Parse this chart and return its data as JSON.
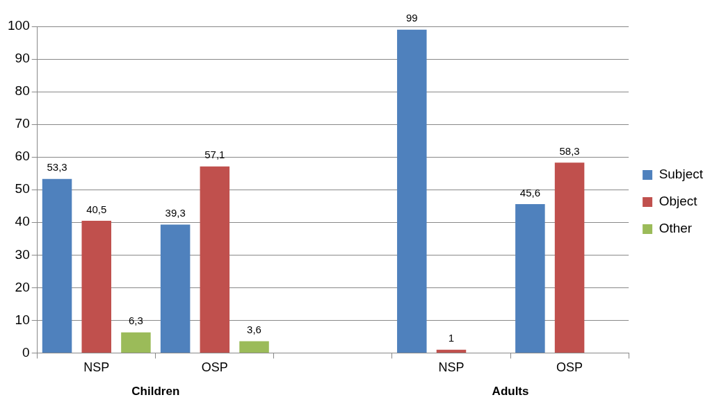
{
  "chart_data": {
    "type": "bar",
    "categories": [
      "NSP",
      "OSP",
      null,
      "NSP",
      "OSP"
    ],
    "series": [
      {
        "name": "Subject",
        "color": "#4f81bd",
        "values": [
          53.3,
          39.3,
          null,
          99,
          45.6
        ],
        "value_labels": [
          "53,3",
          "39,3",
          null,
          "99",
          "45,6"
        ]
      },
      {
        "name": "Object",
        "color": "#c0504d",
        "values": [
          40.5,
          57.1,
          null,
          1,
          58.3
        ],
        "value_labels": [
          "40,5",
          "57,1",
          null,
          "1",
          "58,3"
        ]
      },
      {
        "name": "Other",
        "color": "#9bbb59",
        "values": [
          6.3,
          3.6,
          null,
          null,
          null
        ],
        "value_labels": [
          "6,3",
          "3,6",
          null,
          null,
          null
        ]
      }
    ],
    "annotations": [
      "Children",
      "Adults"
    ],
    "ylim": [
      0,
      100
    ],
    "yticks": [
      0,
      10,
      20,
      30,
      40,
      50,
      60,
      70,
      80,
      90,
      100
    ],
    "grid": "y",
    "legend": "right"
  }
}
